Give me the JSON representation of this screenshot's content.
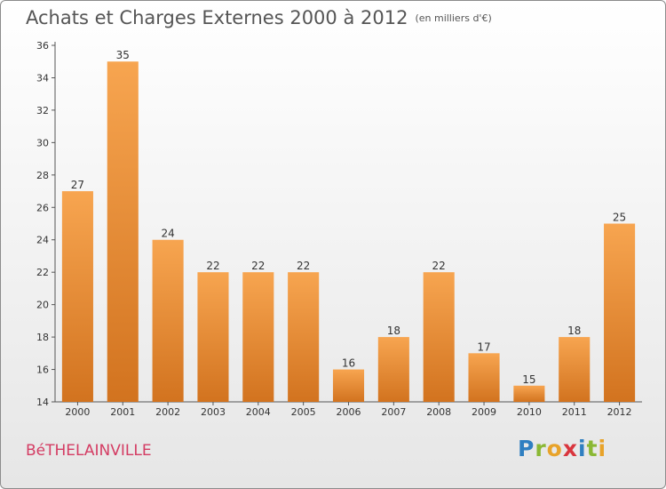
{
  "header": {
    "title": "Achats et Charges Externes 2000 à 2012",
    "unit": "(en milliers d'€)"
  },
  "footer": {
    "commune": "BéTHELAINVILLE",
    "logo": [
      {
        "ch": "P",
        "color": "#2f7fc1"
      },
      {
        "ch": "r",
        "color": "#8ab834"
      },
      {
        "ch": "o",
        "color": "#e8a32a"
      },
      {
        "ch": "x",
        "color": "#d9363e"
      },
      {
        "ch": "i",
        "color": "#2f7fc1"
      },
      {
        "ch": "t",
        "color": "#8ab834"
      },
      {
        "ch": "i",
        "color": "#e8a32a"
      }
    ]
  },
  "colors": {
    "bar_top": "#f7a550",
    "bar_bottom": "#d2731f",
    "title": "#555555",
    "commune": "#d43c63"
  },
  "chart_data": {
    "type": "bar",
    "categories": [
      "2000",
      "2001",
      "2002",
      "2003",
      "2004",
      "2005",
      "2006",
      "2007",
      "2008",
      "2009",
      "2010",
      "2011",
      "2012"
    ],
    "values": [
      27,
      35,
      24,
      22,
      22,
      22,
      16,
      18,
      22,
      17,
      15,
      18,
      25
    ],
    "data_labels": [
      "27",
      "35",
      "24",
      "22",
      "22",
      "22",
      "16",
      "18",
      "22",
      "17",
      "15",
      "18",
      "25"
    ],
    "ylim": [
      14,
      36
    ],
    "yticks": [
      "14",
      "16",
      "18",
      "20",
      "22",
      "24",
      "26",
      "28",
      "30",
      "32",
      "34",
      "36"
    ],
    "grid": false,
    "legend": "none"
  }
}
